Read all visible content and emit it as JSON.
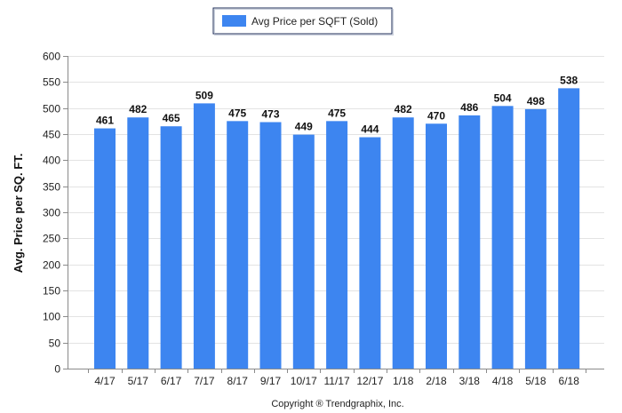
{
  "chart_data": {
    "type": "bar",
    "categories": [
      "4/17",
      "5/17",
      "6/17",
      "7/17",
      "8/17",
      "9/17",
      "10/17",
      "11/17",
      "12/17",
      "1/18",
      "2/18",
      "3/18",
      "4/18",
      "5/18",
      "6/18"
    ],
    "series": [
      {
        "name": "Avg Price per SQFT (Sold)",
        "values": [
          461,
          482,
          465,
          509,
          475,
          473,
          449,
          475,
          444,
          482,
          470,
          486,
          504,
          498,
          538
        ],
        "color": "#3d85f0"
      }
    ],
    "ylabel": "Avg. Price per SQ. FT.",
    "xlabel": "",
    "ylim": [
      0,
      600
    ],
    "yticks": [
      0,
      50,
      100,
      150,
      200,
      250,
      300,
      350,
      400,
      450,
      500,
      550,
      600
    ],
    "grid": true,
    "legend": "top-center",
    "data_labels": true
  },
  "footer": {
    "copyright": "Copyright ® Trendgraphix, Inc."
  }
}
